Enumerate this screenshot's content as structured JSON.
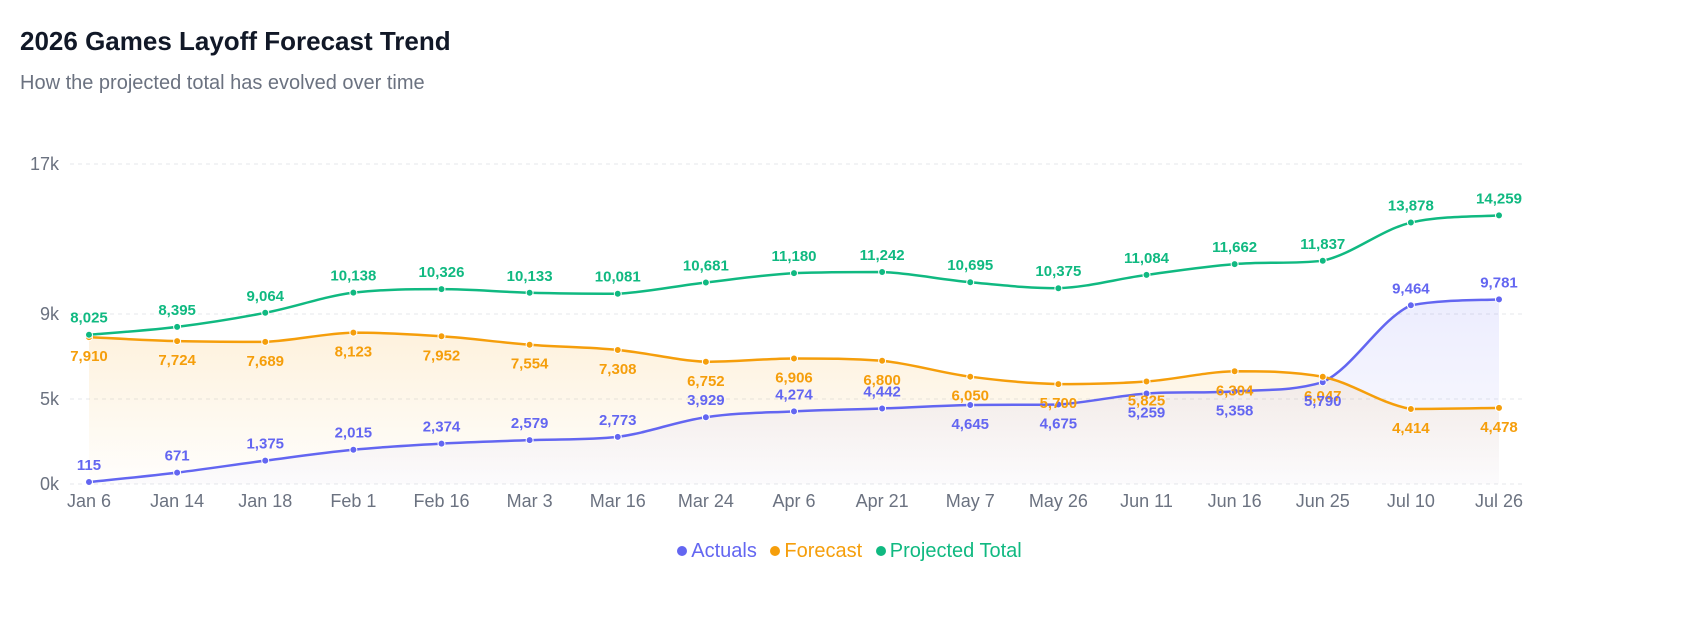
{
  "header": {
    "title": "2026 Games Layoff Forecast Trend",
    "subtitle": "How the projected total has evolved over time"
  },
  "colors": {
    "actuals": "#6366f1",
    "forecast": "#f59e0b",
    "projected": "#10b981",
    "grid": "#e5e7eb",
    "axis_text": "#6b7280"
  },
  "chart_data": {
    "type": "line",
    "title": "2026 Games Layoff Forecast Trend",
    "subtitle": "How the projected total has evolved over time",
    "xlabel": "",
    "ylabel": "",
    "categories": [
      "Jan 6",
      "Jan 14",
      "Jan 18",
      "Feb 1",
      "Feb 16",
      "Mar 3",
      "Mar 16",
      "Mar 24",
      "Apr 6",
      "Apr 21",
      "May 7",
      "May 26",
      "Jun 11",
      "Jun 16",
      "Jun 25",
      "Jul 10",
      "Jul 26"
    ],
    "y_ticks": [
      0,
      5000,
      9000,
      17000
    ],
    "y_tick_labels": [
      "0k",
      "5k",
      "9k",
      "17k"
    ],
    "ylim": [
      0,
      17000
    ],
    "grid": true,
    "legend_position": "bottom-center",
    "series": [
      {
        "name": "Actuals",
        "key": "actuals",
        "values": [
          115,
          671,
          1375,
          2015,
          2374,
          2579,
          2773,
          3929,
          4274,
          4442,
          4645,
          4675,
          5259,
          5358,
          5790,
          9464,
          9781
        ],
        "labels": [
          "115",
          "671",
          "1,375",
          "2,015",
          "2,374",
          "2,579",
          "2,773",
          "3,929",
          "4,274",
          "4,442",
          "4,645",
          "4,675",
          "5,259",
          "5,358",
          "5,790",
          "9,464",
          "9,781"
        ]
      },
      {
        "name": "Forecast",
        "key": "forecast",
        "values": [
          7910,
          7724,
          7689,
          8123,
          7952,
          7554,
          7308,
          6752,
          6906,
          6800,
          6050,
          5700,
          5825,
          6304,
          6047,
          4414,
          4478
        ],
        "labels": [
          "7,910",
          "7,724",
          "7,689",
          "8,123",
          "7,952",
          "7,554",
          "7,308",
          "6,752",
          "6,906",
          "6,800",
          "6,050",
          "5,700",
          "5,825",
          "6,304",
          "6,047",
          "4,414",
          "4,478"
        ]
      },
      {
        "name": "Projected Total",
        "key": "projected",
        "values": [
          8025,
          8395,
          9064,
          10138,
          10326,
          10133,
          10081,
          10681,
          11180,
          11242,
          10695,
          10375,
          11084,
          11662,
          11837,
          13878,
          14259
        ],
        "labels": [
          "8,025",
          "8,395",
          "9,064",
          "10,138",
          "10,326",
          "10,133",
          "10,081",
          "10,681",
          "11,180",
          "11,242",
          "10,695",
          "10,375",
          "11,084",
          "11,662",
          "11,837",
          "13,878",
          "14,259"
        ]
      }
    ]
  },
  "legend": {
    "items": [
      {
        "key": "actuals",
        "label": "Actuals"
      },
      {
        "key": "forecast",
        "label": "Forecast"
      },
      {
        "key": "projected",
        "label": "Projected Total"
      }
    ]
  }
}
